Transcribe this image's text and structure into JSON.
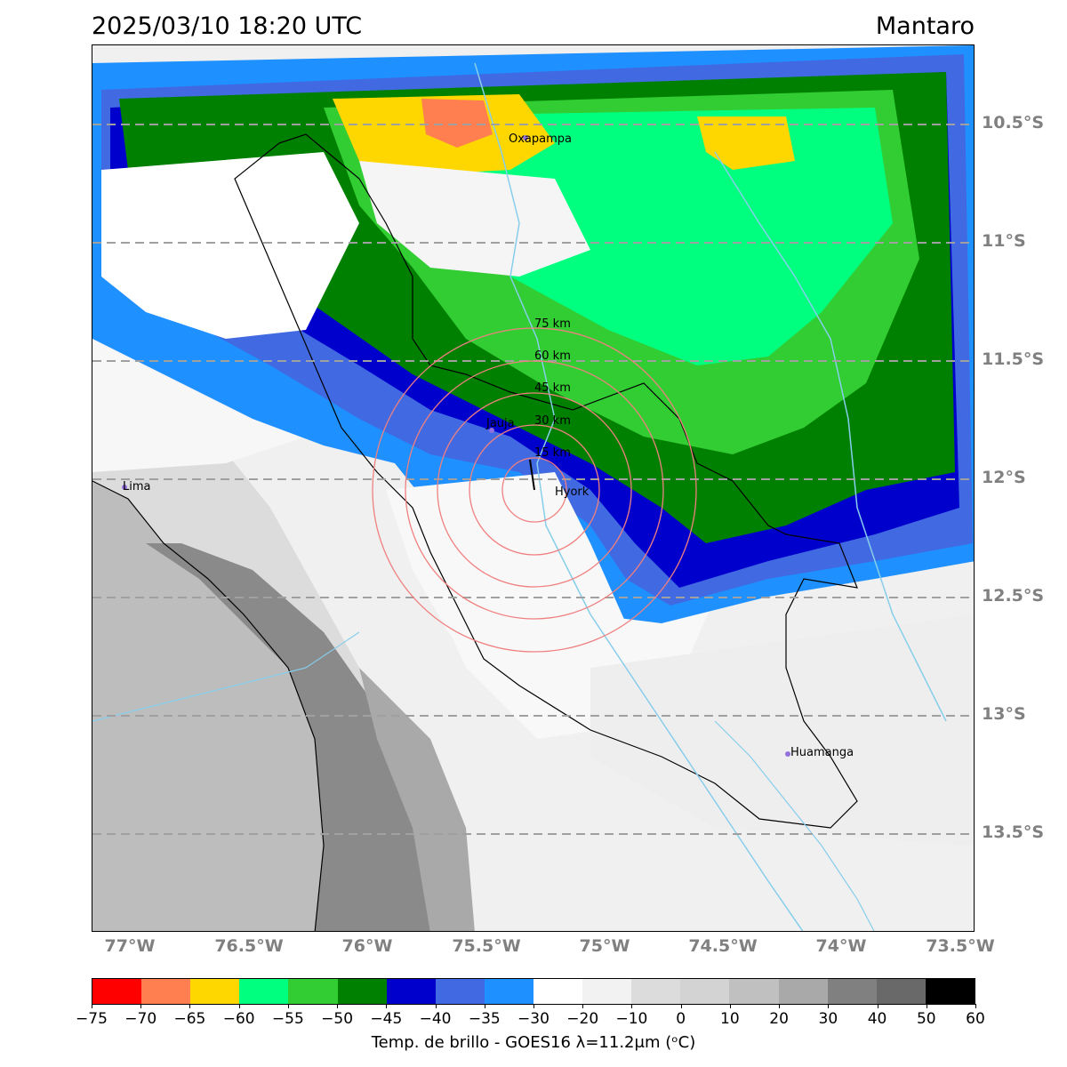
{
  "header": {
    "datetime": "2025/03/10 18:20 UTC",
    "region": "Mantaro"
  },
  "map": {
    "lat_labels": [
      "10.5°S",
      "11°S",
      "11.5°S",
      "12°S",
      "12.5°S",
      "13°S",
      "13.5°S"
    ],
    "lon_labels": [
      "77°W",
      "76.5°W",
      "76°W",
      "75.5°W",
      "75°W",
      "74.5°W",
      "74°W",
      "73.5°W"
    ],
    "cities": {
      "oxapampa": "Oxapampa",
      "jauja": "Jauja",
      "huayao": "Hyork",
      "lima": "Lima",
      "huamanga": "Huamanga"
    },
    "range_rings": [
      "15 km",
      "30 km",
      "45 km",
      "60 km",
      "75 km"
    ]
  },
  "colorbar": {
    "ticks": [
      "−75",
      "−70",
      "−65",
      "−60",
      "−55",
      "−50",
      "−45",
      "−40",
      "−35",
      "−30",
      "−20",
      "−10",
      "0",
      "10",
      "20",
      "30",
      "40",
      "50",
      "60"
    ],
    "colors": [
      "#ff0000",
      "#ff7f50",
      "#ffd700",
      "#00ff7f",
      "#32cd32",
      "#008000",
      "#0000cd",
      "#4169e1",
      "#1e90ff",
      "#ffffff",
      "#f2f2f2",
      "#dcdcdc",
      "#d3d3d3",
      "#c0c0c0",
      "#a9a9a9",
      "#808080",
      "#696969",
      "#000000"
    ],
    "label": "Temp. de brillo - GOES16 λ=11.2μm (ᵒC)"
  }
}
